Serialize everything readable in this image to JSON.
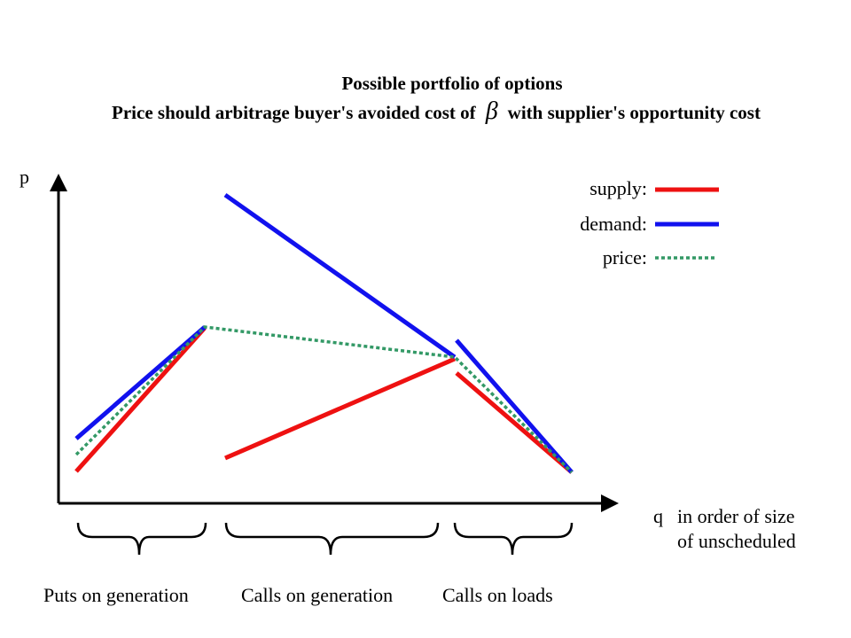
{
  "title": {
    "line1": "Possible portfolio of options",
    "line2_before": "Price should arbitrage buyer's avoided cost of",
    "line2_symbol": "β",
    "line2_after": "with supplier's opportunity cost"
  },
  "axes": {
    "y_label": "p",
    "x_label": "q",
    "x_note_line1": "in order of size",
    "x_note_line2": "of unscheduled"
  },
  "legend": {
    "supply": "supply:",
    "demand": "demand:",
    "price": "price:"
  },
  "segments": {
    "puts_on_generation": "Puts on generation",
    "calls_on_generation": "Calls on generation",
    "calls_on_loads": "Calls on loads"
  },
  "colors": {
    "supply": "#ee1111",
    "demand": "#1111ee",
    "price": "#339966",
    "axis": "#000000"
  }
}
